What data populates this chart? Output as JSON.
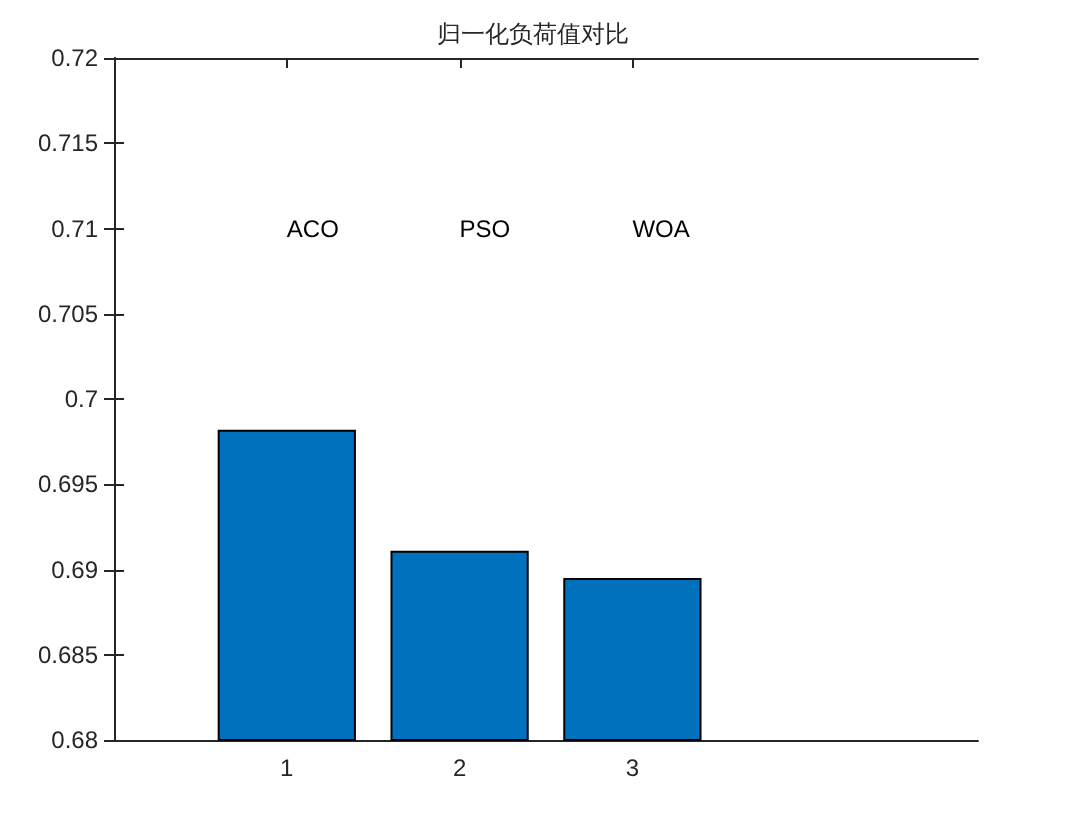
{
  "chart_data": {
    "type": "bar",
    "title": "归一化负荷值对比",
    "x": [
      1,
      2,
      3
    ],
    "values": [
      0.6982,
      0.6911,
      0.6895
    ],
    "color": "#0072bd",
    "xlim": [
      0,
      5
    ],
    "xticks": [
      1,
      2,
      3
    ],
    "ylim": [
      0.68,
      0.72
    ],
    "yticks": [
      0.68,
      0.685,
      0.69,
      0.695,
      0.7,
      0.705,
      0.71,
      0.715,
      0.72
    ],
    "annotations": [
      "ACO",
      "PSO",
      "WOA"
    ],
    "grid": false
  }
}
